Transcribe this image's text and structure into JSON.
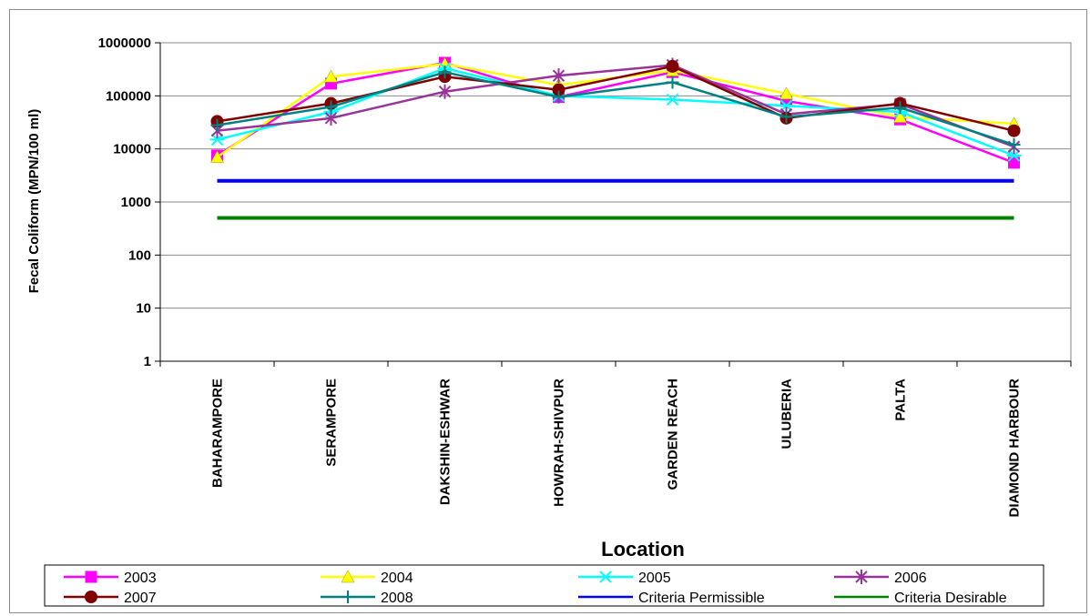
{
  "chart_data": {
    "type": "line",
    "title": "",
    "xlabel": "Location",
    "ylabel": "Fecal Coliform (MPN/100 ml)",
    "y_scale": "log",
    "ylim": [
      1,
      1000000
    ],
    "y_ticks": [
      "1",
      "10",
      "100",
      "1000",
      "10000",
      "100000",
      "1000000"
    ],
    "grid": "horizontal",
    "legend_position": "bottom",
    "categories": [
      "BAHARAMPORE",
      "SERAMPORE",
      "DAKSHIN-ESHWAR",
      "HOWRAH-SHIVPUR",
      "GARDEN REACH",
      "ULUBERIA",
      "PALTA",
      "DIAMOND HARBOUR"
    ],
    "series": [
      {
        "name": "2003",
        "color": "#ff00ff",
        "marker": "square",
        "values": [
          7500,
          170000,
          420000,
          95000,
          280000,
          80000,
          36000,
          5500
        ]
      },
      {
        "name": "2004",
        "color": "#ffff00",
        "marker": "triangle",
        "values": [
          7000,
          230000,
          400000,
          160000,
          300000,
          110000,
          40000,
          30000
        ]
      },
      {
        "name": "2005",
        "color": "#00ffff",
        "marker": "asterisk",
        "values": [
          15000,
          50000,
          330000,
          100000,
          85000,
          65000,
          50000,
          7500
        ]
      },
      {
        "name": "2006",
        "color": "#993399",
        "marker": "star",
        "values": [
          22000,
          38000,
          120000,
          240000,
          380000,
          45000,
          70000,
          11000
        ]
      },
      {
        "name": "2007",
        "color": "#800000",
        "marker": "circle",
        "values": [
          33000,
          72000,
          230000,
          130000,
          360000,
          38000,
          72000,
          22000
        ]
      },
      {
        "name": "2008",
        "color": "#008080",
        "marker": "plus",
        "values": [
          28000,
          62000,
          280000,
          95000,
          180000,
          40000,
          60000,
          12000
        ]
      },
      {
        "name": "Criteria Permissible",
        "color": "#0000ff",
        "marker": "none",
        "values": [
          2500,
          2500,
          2500,
          2500,
          2500,
          2500,
          2500,
          2500
        ]
      },
      {
        "name": "Criteria Desirable",
        "color": "#008000",
        "marker": "none",
        "values": [
          500,
          500,
          500,
          500,
          500,
          500,
          500,
          500
        ]
      }
    ]
  }
}
